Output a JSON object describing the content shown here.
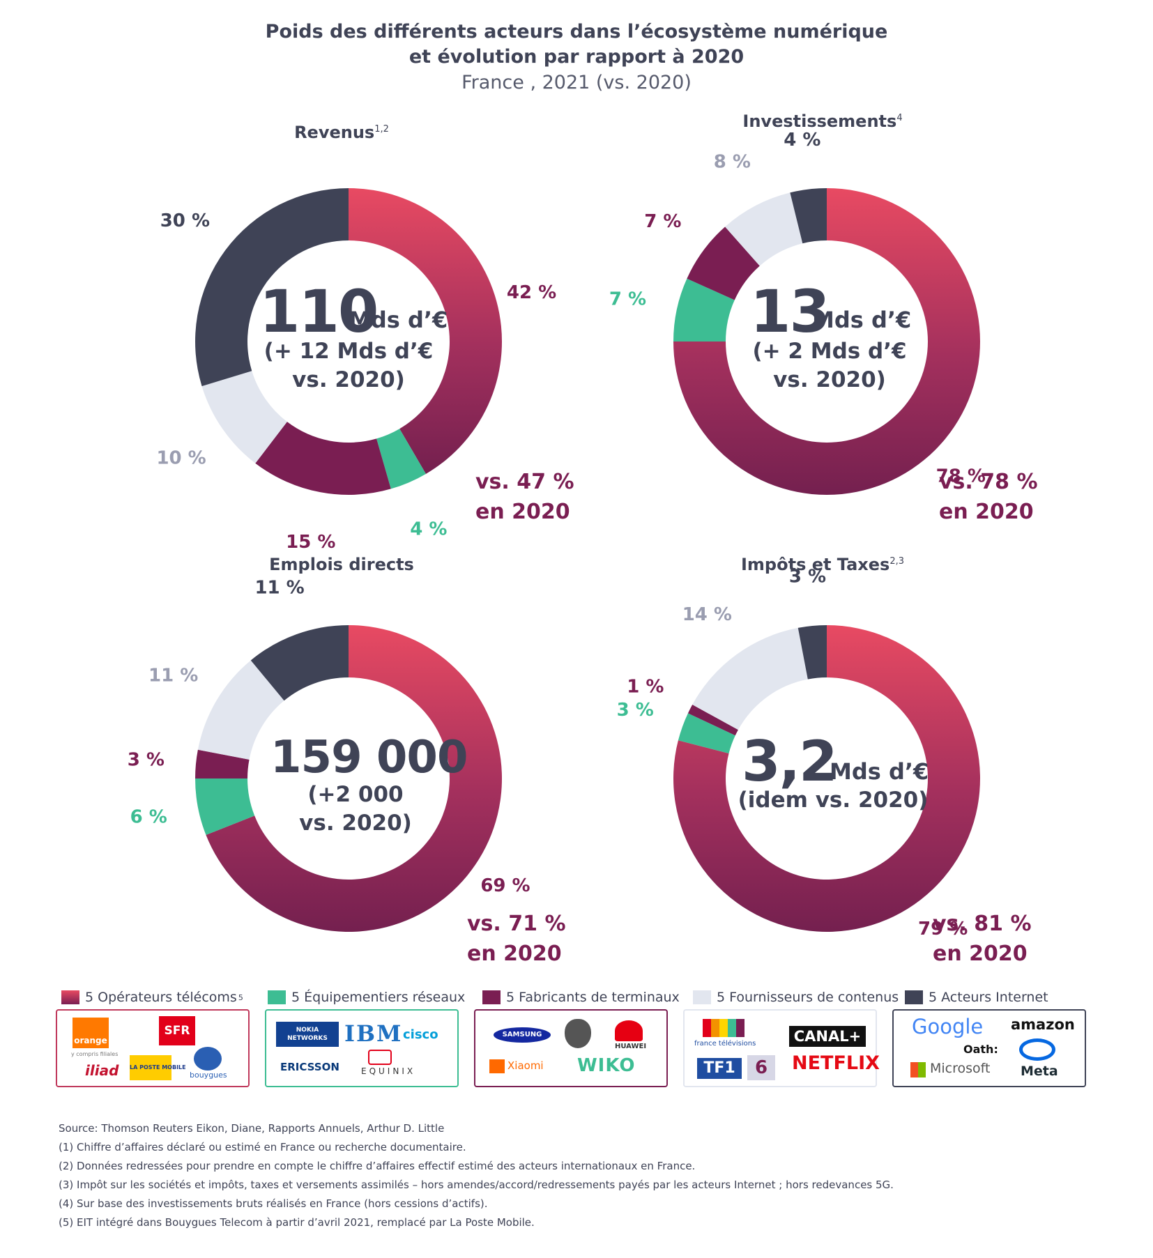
{
  "title": {
    "line1": "Poids des différents acteurs dans l’écosystème numérique",
    "line2": "et évolution par rapport à 2020",
    "subtitle": "France , 2021 (vs. 2020)"
  },
  "colors": {
    "operateurs": "#d94664",
    "operateurs_dark": "#7a1e52",
    "equipementiers": "#3dbd93",
    "fabricants": "#7a1e52",
    "fournisseurs": "#e2e6ef",
    "internet": "#3f4356"
  },
  "chart_data": [
    {
      "type": "pie",
      "title": "Revenus",
      "title_sup": "1,2",
      "categories": [
        "5 Opérateurs télécoms",
        "5 Équipementiers réseaux",
        "5 Fabricants de terminaux",
        "5 Fournisseurs de contenus",
        "5 Acteurs Internet"
      ],
      "values": [
        42,
        4,
        15,
        10,
        30
      ],
      "value_labels": [
        "42 %",
        "4 %",
        "15 %",
        "10 %",
        "30 %"
      ],
      "center_value": "110",
      "center_unit": "Mds d’€",
      "center_sub": [
        "(+ 12 Mds d’€",
        "vs. 2020)"
      ],
      "comparison": [
        "vs. 47 %",
        "en 2020"
      ]
    },
    {
      "type": "pie",
      "title": "Investissements",
      "title_sup": "4",
      "categories": [
        "5 Opérateurs télécoms",
        "5 Équipementiers réseaux",
        "5 Fabricants de terminaux",
        "5 Fournisseurs de contenus",
        "5 Acteurs Internet"
      ],
      "values": [
        78,
        7,
        7,
        8,
        4
      ],
      "value_labels": [
        "78 %",
        "7 %",
        "7 %",
        "8 %",
        "4 %"
      ],
      "center_value": "13",
      "center_unit": "Mds d’€",
      "center_sub": [
        "(+ 2 Mds d’€",
        "vs. 2020)"
      ],
      "comparison": [
        "vs. 78 %",
        "en 2020"
      ]
    },
    {
      "type": "pie",
      "title": "Emplois directs",
      "title_sup": "",
      "categories": [
        "5 Opérateurs télécoms",
        "5 Équipementiers réseaux",
        "5 Fabricants de terminaux",
        "5 Fournisseurs de contenus",
        "5 Acteurs Internet"
      ],
      "values": [
        69,
        6,
        3,
        11,
        11
      ],
      "value_labels": [
        "69 %",
        "6 %",
        "3 %",
        "11 %",
        "11 %"
      ],
      "center_value": "159 000",
      "center_unit": "",
      "center_sub": [
        "(+2 000",
        "vs. 2020)"
      ],
      "comparison": [
        "vs. 71 %",
        "en 2020"
      ]
    },
    {
      "type": "pie",
      "title": "Impôts et Taxes",
      "title_sup": "2,3",
      "categories": [
        "5 Opérateurs télécoms",
        "5 Équipementiers réseaux",
        "5 Fabricants de terminaux",
        "5 Fournisseurs de contenus",
        "5 Acteurs Internet"
      ],
      "values": [
        79,
        3,
        1,
        14,
        3
      ],
      "value_labels": [
        "79 %",
        "3 %",
        "1 %",
        "14 %",
        "3 %"
      ],
      "center_value": "3,2",
      "center_unit": "Mds d’€",
      "center_sub": [
        "(idem vs. 2020)"
      ],
      "comparison": [
        "vs. 81 %",
        "en 2020"
      ]
    }
  ],
  "legend": [
    {
      "label": "5 Opérateurs télécoms",
      "sup": "5",
      "logos": [
        "orange",
        "y compris filiales",
        "SFR",
        "iliad",
        "LA POSTE MOBILE",
        "bouygues"
      ]
    },
    {
      "label": "5 Équipementiers réseaux",
      "logos": [
        "NOKIA NETWORKS",
        "IBM",
        "cisco",
        "ERICSSON",
        "EQUINIX"
      ]
    },
    {
      "label": "5 Fabricants de terminaux",
      "logos": [
        "SAMSUNG",
        "apple-logo",
        "HUAWEI",
        "Xiaomi",
        "WIKO"
      ]
    },
    {
      "label": "5 Fournisseurs de contenus",
      "logos": [
        "france télévisions",
        "CANAL+",
        "TF1",
        "6",
        "NETFLIX"
      ]
    },
    {
      "label": "5 Acteurs Internet",
      "logos": [
        "Google",
        "amazon",
        "Oath:",
        "Microsoft",
        "Meta"
      ]
    }
  ],
  "notes": [
    "Source: Thomson Reuters Eikon, Diane, Rapports Annuels, Arthur D. Little",
    "(1) Chiffre d’affaires déclaré ou estimé en France ou recherche documentaire.",
    "(2) Données redressées pour prendre en compte le chiffre d’affaires effectif estimé des acteurs internationaux en France.",
    "(3) Impôt sur les sociétés et impôts, taxes et versements assimilés – hors amendes/accord/redressements payés par les acteurs Internet ; hors redevances 5G.",
    "(4) Sur base des investissements bruts réalisés en France (hors cessions d’actifs).",
    "(5) EIT intégré dans Bouygues Telecom à partir d’avril 2021, remplacé par La Poste Mobile."
  ]
}
